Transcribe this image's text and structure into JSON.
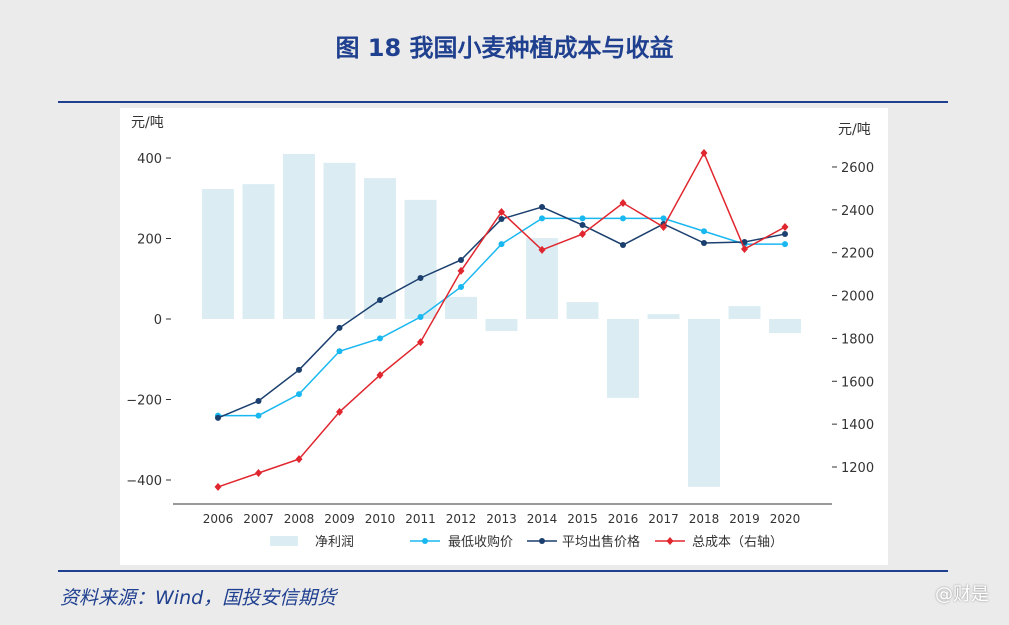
{
  "title": "图 18 我国小麦种植成本与收益",
  "source": "资料来源：Wind，国投安信期货",
  "watermark": "@财是",
  "chart_data": {
    "type": "bar+line",
    "categories": [
      "2006",
      "2007",
      "2008",
      "2009",
      "2010",
      "2011",
      "2012",
      "2013",
      "2014",
      "2015",
      "2016",
      "2017",
      "2018",
      "2019",
      "2020"
    ],
    "left_axis": {
      "label": "元/吨",
      "ylim": [
        -460,
        420
      ],
      "ticks": [
        -400,
        -200,
        0,
        200,
        400
      ]
    },
    "right_axis": {
      "label": "元/吨",
      "ylim": [
        1100,
        2700
      ],
      "ticks": [
        1200,
        1400,
        1600,
        1800,
        2000,
        2200,
        2400,
        2600
      ]
    },
    "series": [
      {
        "name": "净利润",
        "type": "bar",
        "axis": "left",
        "color": "#dbecf3",
        "values": [
          323,
          335,
          410,
          388,
          350,
          296,
          55,
          -30,
          201,
          42,
          -196,
          12,
          -417,
          32,
          -35
        ]
      },
      {
        "name": "最低收购价",
        "type": "line",
        "axis": "right",
        "color": "#1ab8f0",
        "marker": "circle",
        "values": [
          1440,
          1440,
          1540,
          1740,
          1800,
          1900,
          2040,
          2240,
          2360,
          2360,
          2360,
          2360,
          2300,
          2240,
          2240
        ]
      },
      {
        "name": "平均出售价格",
        "type": "line",
        "axis": "right",
        "color": "#1b3f6e",
        "marker": "circle",
        "values": [
          1429,
          1508,
          1653,
          1849,
          1979,
          2082,
          2166,
          2357,
          2413,
          2329,
          2236,
          2334,
          2245,
          2250,
          2287
        ]
      },
      {
        "name": "总成本（右轴）",
        "type": "line",
        "axis": "right",
        "color": "#e0262e",
        "marker": "diamond",
        "values": [
          1107,
          1172,
          1237,
          1457,
          1629,
          1783,
          2115,
          2390,
          2213,
          2287,
          2432,
          2320,
          2665,
          2217,
          2320
        ]
      }
    ],
    "legend": "bottom",
    "grid": false
  }
}
